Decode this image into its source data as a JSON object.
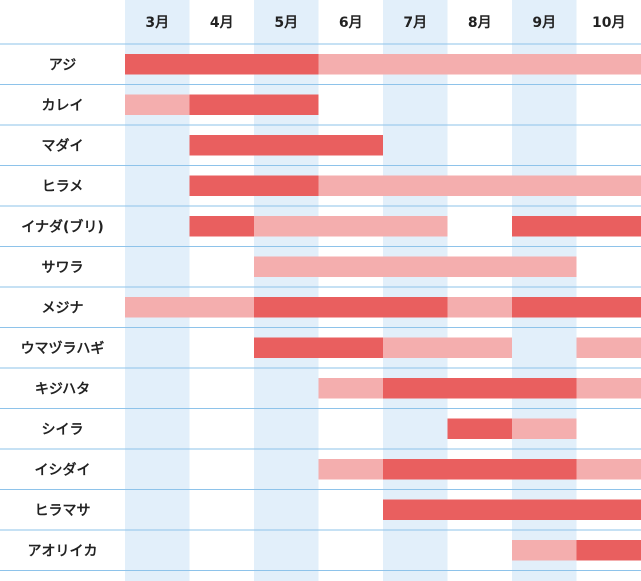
{
  "chart_data": {
    "type": "table",
    "months": [
      "3月",
      "4月",
      "5月",
      "6月",
      "7月",
      "8月",
      "9月",
      "10月"
    ],
    "legend_levels": {
      "1": "light",
      "2": "dark"
    },
    "colors": {
      "light": "#f4aeae",
      "dark": "#e95f5f",
      "column_shade": "#e2effa",
      "grid_line": "#8ec3ea",
      "text": "#222222"
    },
    "rows": [
      {
        "fish": "アジ",
        "levels": [
          2,
          2,
          2,
          1,
          1,
          1,
          1,
          1
        ]
      },
      {
        "fish": "カレイ",
        "levels": [
          1,
          2,
          2,
          0,
          0,
          0,
          0,
          0
        ]
      },
      {
        "fish": "マダイ",
        "levels": [
          0,
          2,
          2,
          2,
          0,
          0,
          0,
          0
        ]
      },
      {
        "fish": "ヒラメ",
        "levels": [
          0,
          2,
          2,
          1,
          1,
          1,
          1,
          1
        ]
      },
      {
        "fish": "イナダ(ブリ)",
        "levels": [
          0,
          2,
          1,
          1,
          1,
          0,
          2,
          2
        ]
      },
      {
        "fish": "サワラ",
        "levels": [
          0,
          0,
          1,
          1,
          1,
          1,
          1,
          0
        ]
      },
      {
        "fish": "メジナ",
        "levels": [
          1,
          1,
          2,
          2,
          2,
          1,
          2,
          2
        ]
      },
      {
        "fish": "ウマヅラハギ",
        "levels": [
          0,
          0,
          2,
          2,
          1,
          1,
          0,
          1
        ]
      },
      {
        "fish": "キジハタ",
        "levels": [
          0,
          0,
          0,
          1,
          2,
          2,
          2,
          1
        ]
      },
      {
        "fish": "シイラ",
        "levels": [
          0,
          0,
          0,
          0,
          0,
          2,
          1,
          0
        ]
      },
      {
        "fish": "イシダイ",
        "levels": [
          0,
          0,
          0,
          1,
          2,
          2,
          2,
          1
        ]
      },
      {
        "fish": "ヒラマサ",
        "levels": [
          0,
          0,
          0,
          0,
          2,
          2,
          2,
          2
        ]
      },
      {
        "fish": "アオリイカ",
        "levels": [
          0,
          0,
          0,
          0,
          0,
          0,
          1,
          2
        ]
      }
    ]
  }
}
